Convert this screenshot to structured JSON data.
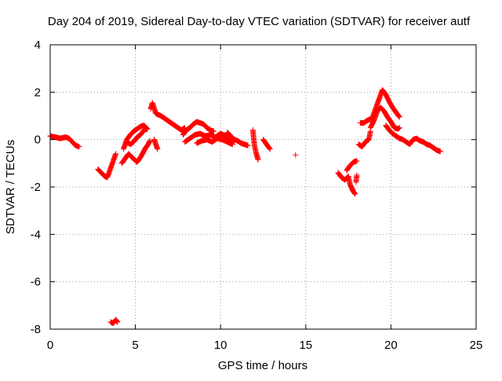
{
  "chart_data": {
    "type": "scatter",
    "title": "Day 204 of 2019, Sidereal Day-to-day VTEC variation (SDTVAR) for receiver autf",
    "xlabel": "GPS time / hours",
    "ylabel": "SDTVAR / TECUs",
    "xlim": [
      0,
      25
    ],
    "ylim": [
      -8,
      4
    ],
    "xticks": [
      0,
      5,
      10,
      15,
      20,
      25
    ],
    "yticks": [
      -8,
      -6,
      -4,
      -2,
      0,
      2,
      4
    ],
    "grid": true,
    "marker": "plus",
    "color": "#ff0000",
    "series": [
      {
        "name": "SDTVAR",
        "segments": [
          [
            [
              0.0,
              0.15
            ],
            [
              0.3,
              0.1
            ],
            [
              0.6,
              0.05
            ],
            [
              0.9,
              0.1
            ],
            [
              1.1,
              0.05
            ],
            [
              1.3,
              -0.1
            ],
            [
              1.5,
              -0.25
            ],
            [
              1.7,
              -0.3
            ]
          ],
          [
            [
              2.8,
              -1.25
            ],
            [
              3.0,
              -1.4
            ],
            [
              3.2,
              -1.55
            ],
            [
              3.35,
              -1.6
            ],
            [
              3.5,
              -1.3
            ],
            [
              3.7,
              -0.9
            ],
            [
              3.85,
              -0.6
            ]
          ],
          [
            [
              3.55,
              -7.7
            ],
            [
              3.7,
              -7.75
            ],
            [
              3.85,
              -7.6
            ],
            [
              3.95,
              -7.7
            ]
          ],
          [
            [
              4.2,
              -1.0
            ],
            [
              4.4,
              -0.8
            ],
            [
              4.6,
              -0.6
            ],
            [
              4.8,
              -0.75
            ],
            [
              5.1,
              -0.95
            ],
            [
              5.3,
              -0.75
            ],
            [
              5.45,
              -0.55
            ],
            [
              5.6,
              -0.35
            ],
            [
              5.75,
              -0.2
            ],
            [
              5.85,
              -0.05
            ]
          ],
          [
            [
              4.3,
              -0.4
            ],
            [
              4.5,
              0.0
            ],
            [
              4.7,
              0.2
            ],
            [
              4.9,
              0.35
            ],
            [
              5.1,
              0.45
            ],
            [
              5.3,
              0.55
            ],
            [
              5.5,
              0.6
            ],
            [
              5.7,
              0.45
            ]
          ],
          [
            [
              4.5,
              -0.1
            ],
            [
              4.7,
              -0.2
            ],
            [
              4.9,
              -0.1
            ],
            [
              5.1,
              0.1
            ],
            [
              5.3,
              0.2
            ],
            [
              5.5,
              0.4
            ],
            [
              5.7,
              0.45
            ]
          ],
          [
            [
              5.9,
              1.3
            ],
            [
              6.0,
              1.55
            ],
            [
              6.2,
              1.1
            ],
            [
              6.5,
              1.0
            ],
            [
              6.8,
              0.85
            ],
            [
              7.1,
              0.7
            ],
            [
              7.4,
              0.55
            ],
            [
              7.7,
              0.4
            ],
            [
              7.9,
              0.5
            ]
          ],
          [
            [
              6.1,
              0.0
            ],
            [
              6.2,
              -0.2
            ],
            [
              6.3,
              -0.4
            ]
          ],
          [
            [
              7.8,
              0.2
            ],
            [
              8.0,
              0.4
            ],
            [
              8.2,
              0.5
            ],
            [
              8.4,
              0.65
            ],
            [
              8.6,
              0.75
            ],
            [
              8.8,
              0.7
            ],
            [
              9.0,
              0.65
            ],
            [
              9.2,
              0.5
            ],
            [
              9.4,
              0.4
            ],
            [
              9.6,
              0.35
            ]
          ],
          [
            [
              7.9,
              -0.1
            ],
            [
              8.2,
              0.05
            ],
            [
              8.5,
              0.2
            ],
            [
              8.8,
              0.25
            ],
            [
              9.1,
              0.15
            ],
            [
              9.4,
              0.2
            ],
            [
              9.7,
              0.1
            ],
            [
              10.0,
              0.25
            ],
            [
              10.3,
              0.15
            ],
            [
              10.6,
              0.05
            ],
            [
              10.8,
              -0.05
            ]
          ],
          [
            [
              8.6,
              -0.15
            ],
            [
              8.9,
              -0.05
            ],
            [
              9.2,
              0.0
            ],
            [
              9.5,
              -0.1
            ],
            [
              9.8,
              0.05
            ],
            [
              10.1,
              0.0
            ],
            [
              10.4,
              -0.1
            ],
            [
              10.7,
              -0.2
            ]
          ],
          [
            [
              10.4,
              0.3
            ],
            [
              10.6,
              0.15
            ],
            [
              10.8,
              0.0
            ],
            [
              11.0,
              -0.05
            ],
            [
              11.2,
              -0.15
            ],
            [
              11.4,
              -0.2
            ],
            [
              11.6,
              -0.25
            ]
          ],
          [
            [
              11.9,
              0.4
            ],
            [
              11.95,
              0.0
            ],
            [
              12.0,
              -0.3
            ],
            [
              12.1,
              -0.6
            ],
            [
              12.2,
              -0.85
            ]
          ],
          [
            [
              12.5,
              0.0
            ],
            [
              12.7,
              -0.2
            ],
            [
              12.9,
              -0.4
            ]
          ],
          [
            [
              14.4,
              -0.65
            ]
          ],
          [
            [
              16.9,
              -1.4
            ],
            [
              17.1,
              -1.6
            ],
            [
              17.3,
              -1.7
            ],
            [
              17.5,
              -1.55
            ],
            [
              17.6,
              -1.9
            ],
            [
              17.8,
              -2.2
            ],
            [
              17.9,
              -2.3
            ]
          ],
          [
            [
              17.4,
              -1.3
            ],
            [
              17.6,
              -1.1
            ],
            [
              17.8,
              -0.95
            ],
            [
              18.0,
              -0.9
            ]
          ],
          [
            [
              18.0,
              -1.5
            ],
            [
              17.95,
              -1.8
            ]
          ],
          [
            [
              18.1,
              -0.2
            ],
            [
              18.3,
              -0.3
            ],
            [
              18.5,
              -0.1
            ],
            [
              18.7,
              0.0
            ],
            [
              18.8,
              0.35
            ]
          ],
          [
            [
              18.2,
              0.7
            ],
            [
              18.4,
              0.7
            ],
            [
              18.6,
              0.8
            ],
            [
              18.9,
              0.9
            ],
            [
              19.1,
              1.3
            ],
            [
              19.3,
              1.7
            ],
            [
              19.5,
              2.1
            ],
            [
              19.7,
              1.9
            ],
            [
              19.9,
              1.6
            ],
            [
              20.1,
              1.35
            ],
            [
              20.3,
              1.15
            ],
            [
              20.5,
              0.95
            ]
          ],
          [
            [
              18.8,
              0.5
            ],
            [
              19.0,
              0.8
            ],
            [
              19.2,
              1.2
            ],
            [
              19.4,
              1.35
            ],
            [
              19.6,
              1.2
            ],
            [
              19.8,
              0.95
            ],
            [
              20.0,
              0.75
            ],
            [
              20.2,
              0.5
            ],
            [
              20.4,
              0.45
            ],
            [
              20.5,
              0.5
            ]
          ],
          [
            [
              19.7,
              0.6
            ],
            [
              19.9,
              0.4
            ],
            [
              20.1,
              0.25
            ],
            [
              20.3,
              0.15
            ],
            [
              20.5,
              0.05
            ],
            [
              20.7,
              0.0
            ],
            [
              20.9,
              -0.1
            ],
            [
              21.1,
              -0.2
            ],
            [
              21.3,
              0.0
            ],
            [
              21.5,
              0.05
            ],
            [
              21.7,
              -0.05
            ],
            [
              21.9,
              -0.1
            ],
            [
              22.1,
              -0.2
            ],
            [
              22.3,
              -0.25
            ],
            [
              22.5,
              -0.35
            ],
            [
              22.7,
              -0.45
            ],
            [
              22.9,
              -0.5
            ]
          ]
        ]
      }
    ]
  }
}
